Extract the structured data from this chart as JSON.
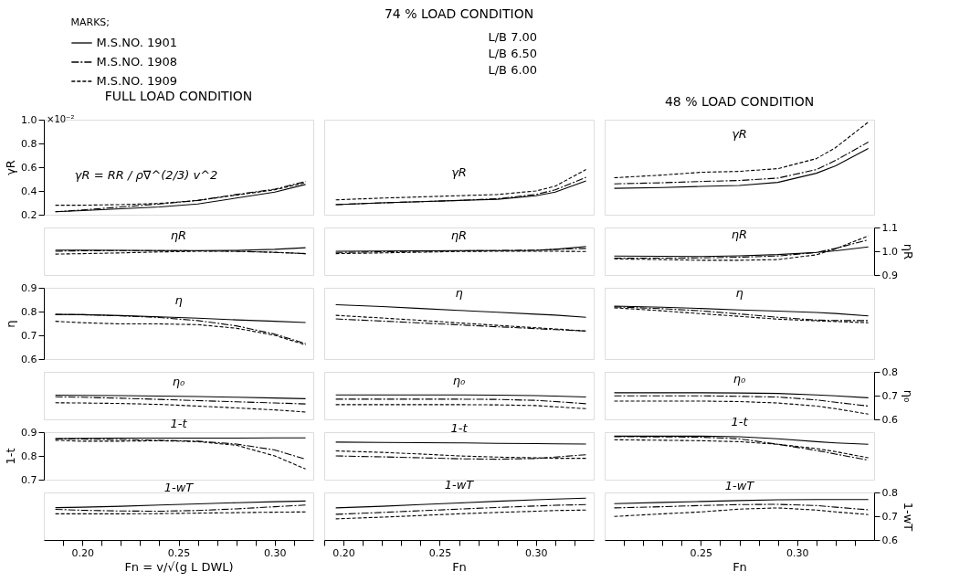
{
  "chart_data": [
    {
      "type": "line",
      "title": "FULL LOAD CONDITION",
      "ylabel": "γR",
      "annotations": [
        "γR = RR / ρ∇^(2/3) v^2",
        "×10⁻²"
      ],
      "xlim": [
        0.18,
        0.32
      ],
      "ylim": [
        0.2,
        1.0
      ],
      "yticks": [
        0.2,
        0.4,
        0.6,
        0.8,
        {
          "value": 1.0,
          "label": "1.0"
        }
      ],
      "tick_labels": "y",
      "x": [
        0.186,
        0.2,
        0.22,
        0.24,
        0.26,
        0.28,
        0.3,
        0.316
      ],
      "series": [
        {
          "color": "#000000",
          "line_style": "solid",
          "values": [
            0.225,
            0.235,
            0.25,
            0.265,
            0.29,
            0.34,
            0.39,
            0.455
          ]
        },
        {
          "color": "#000000",
          "line_style": "dashdot",
          "values": [
            0.225,
            0.24,
            0.265,
            0.29,
            0.32,
            0.37,
            0.415,
            0.48
          ]
        },
        {
          "color": "#000000",
          "line_style": "dashed",
          "values": [
            0.28,
            0.28,
            0.285,
            0.295,
            0.32,
            0.365,
            0.41,
            0.47
          ]
        }
      ]
    },
    {
      "type": "line",
      "title": "74 % LOAD CONDITION",
      "legend": "top",
      "legend_title": "MARKS;",
      "annotations": [
        "γR",
        "L/B 7.00",
        "L/B 6.50",
        "L/B 6.00"
      ],
      "xlim": [
        0.19,
        0.33
      ],
      "ylim": [
        0.2,
        1.0
      ],
      "tick_labels": false,
      "x": [
        0.196,
        0.22,
        0.24,
        0.26,
        0.28,
        0.3,
        0.31,
        0.326
      ],
      "series": [
        {
          "name": "M.S.NO. 1901",
          "color": "#000000",
          "line_style": "solid",
          "values": [
            0.285,
            0.3,
            0.31,
            0.32,
            0.33,
            0.36,
            0.39,
            0.485
          ]
        },
        {
          "name": "M.S.NO. 1908",
          "color": "#000000",
          "line_style": "dashdot",
          "values": [
            0.285,
            0.3,
            0.31,
            0.32,
            0.335,
            0.37,
            0.41,
            0.515
          ]
        },
        {
          "name": "M.S.NO. 1909",
          "color": "#000000",
          "line_style": "dashed",
          "values": [
            0.325,
            0.34,
            0.35,
            0.36,
            0.37,
            0.4,
            0.44,
            0.58
          ]
        }
      ]
    },
    {
      "type": "line",
      "title": "48 % LOAD CONDITION",
      "annotations": [
        "γR"
      ],
      "xlim": [
        0.2,
        0.34
      ],
      "ylim": [
        0.2,
        1.0
      ],
      "tick_labels": false,
      "x": [
        0.205,
        0.23,
        0.25,
        0.27,
        0.29,
        0.31,
        0.32,
        0.337
      ],
      "series": [
        {
          "color": "#000000",
          "line_style": "solid",
          "values": [
            0.422,
            0.429,
            0.438,
            0.446,
            0.472,
            0.549,
            0.611,
            0.757
          ]
        },
        {
          "color": "#000000",
          "line_style": "dashdot",
          "values": [
            0.46,
            0.469,
            0.48,
            0.488,
            0.508,
            0.58,
            0.657,
            0.811
          ]
        },
        {
          "color": "#000000",
          "line_style": "dashed",
          "values": [
            0.511,
            0.534,
            0.557,
            0.565,
            0.588,
            0.672,
            0.765,
            0.98
          ]
        }
      ]
    },
    {
      "type": "line",
      "annotations": [
        "ηR"
      ],
      "xlim": [
        0.18,
        0.32
      ],
      "ylim": [
        0.9,
        1.1
      ],
      "tick_labels": false,
      "x": [
        0.186,
        0.2,
        0.22,
        0.24,
        0.26,
        0.28,
        0.3,
        0.316
      ],
      "series": [
        {
          "color": "#000000",
          "line_style": "solid",
          "values": [
            1.005,
            1.005,
            1.004,
            1.003,
            1.003,
            1.004,
            1.008,
            1.015
          ]
        },
        {
          "color": "#000000",
          "line_style": "dashdot",
          "values": [
            1.0,
            1.002,
            1.003,
            1.003,
            1.002,
            1.0,
            0.995,
            0.99
          ]
        },
        {
          "color": "#000000",
          "line_style": "dashed",
          "values": [
            0.988,
            0.99,
            0.993,
            0.997,
            1.0,
            1.0,
            0.996,
            0.99
          ]
        }
      ]
    },
    {
      "type": "line",
      "annotations": [
        "ηR"
      ],
      "xlim": [
        0.19,
        0.33
      ],
      "ylim": [
        0.9,
        1.1
      ],
      "tick_labels": false,
      "x": [
        0.196,
        0.22,
        0.24,
        0.26,
        0.28,
        0.3,
        0.31,
        0.326
      ],
      "series": [
        {
          "color": "#000000",
          "line_style": "solid",
          "values": [
            1.0,
            1.001,
            1.002,
            1.003,
            1.003,
            1.004,
            1.008,
            1.02
          ]
        },
        {
          "color": "#000000",
          "line_style": "dashdot",
          "values": [
            0.995,
            0.998,
            1.0,
            1.002,
            1.003,
            1.005,
            1.008,
            1.012
          ]
        },
        {
          "color": "#000000",
          "line_style": "dashed",
          "values": [
            0.99,
            0.993,
            0.996,
            0.999,
            1.0,
            1.0,
            1.0,
            0.999
          ]
        }
      ]
    },
    {
      "type": "line",
      "annotations": [
        "ηR"
      ],
      "ylabel": "ηR",
      "xlim": [
        0.2,
        0.34
      ],
      "ylim": [
        0.9,
        1.1
      ],
      "yticks": [
        0.9,
        {
          "value": 1.0,
          "label": "1.0"
        },
        1.1
      ],
      "tick_labels": "y",
      "x": [
        0.205,
        0.23,
        0.25,
        0.27,
        0.29,
        0.31,
        0.32,
        0.337
      ],
      "series": [
        {
          "color": "#000000",
          "line_style": "solid",
          "values": [
            0.98,
            0.979,
            0.978,
            0.981,
            0.986,
            0.995,
            1.002,
            1.018
          ]
        },
        {
          "color": "#000000",
          "line_style": "dashdot",
          "values": [
            0.971,
            0.971,
            0.972,
            0.975,
            0.98,
            0.995,
            1.012,
            1.048
          ]
        },
        {
          "color": "#000000",
          "line_style": "dashed",
          "values": [
            0.968,
            0.965,
            0.962,
            0.962,
            0.965,
            0.985,
            1.01,
            1.065
          ]
        }
      ]
    },
    {
      "type": "line",
      "annotations": [
        "η"
      ],
      "ylabel": "η",
      "xlim": [
        0.18,
        0.32
      ],
      "ylim": [
        0.6,
        0.9
      ],
      "yticks": [
        0.6,
        0.7,
        0.8,
        0.9
      ],
      "tick_labels": "y",
      "x": [
        0.186,
        0.2,
        0.22,
        0.24,
        0.26,
        0.28,
        0.3,
        0.316
      ],
      "series": [
        {
          "color": "#000000",
          "line_style": "solid",
          "values": [
            0.788,
            0.787,
            0.783,
            0.778,
            0.772,
            0.765,
            0.759,
            0.754
          ]
        },
        {
          "color": "#000000",
          "line_style": "dashdot",
          "values": [
            0.788,
            0.787,
            0.782,
            0.775,
            0.762,
            0.74,
            0.705,
            0.665
          ]
        },
        {
          "color": "#000000",
          "line_style": "dashed",
          "values": [
            0.759,
            0.753,
            0.748,
            0.748,
            0.745,
            0.73,
            0.7,
            0.66
          ]
        }
      ]
    },
    {
      "type": "line",
      "annotations": [
        "η"
      ],
      "xlim": [
        0.19,
        0.33
      ],
      "ylim": [
        0.6,
        0.9
      ],
      "tick_labels": false,
      "x": [
        0.196,
        0.22,
        0.24,
        0.26,
        0.28,
        0.3,
        0.31,
        0.326
      ],
      "series": [
        {
          "color": "#000000",
          "line_style": "solid",
          "values": [
            0.829,
            0.821,
            0.813,
            0.805,
            0.797,
            0.789,
            0.785,
            0.776
          ]
        },
        {
          "color": "#000000",
          "line_style": "dashdot",
          "values": [
            0.769,
            0.76,
            0.752,
            0.744,
            0.736,
            0.728,
            0.724,
            0.718
          ]
        },
        {
          "color": "#000000",
          "line_style": "dashed",
          "values": [
            0.784,
            0.773,
            0.763,
            0.752,
            0.742,
            0.732,
            0.727,
            0.718
          ]
        }
      ]
    },
    {
      "type": "line",
      "annotations": [
        "η"
      ],
      "xlim": [
        0.2,
        0.34
      ],
      "ylim": [
        0.6,
        0.9
      ],
      "tick_labels": false,
      "x": [
        0.205,
        0.23,
        0.25,
        0.27,
        0.29,
        0.31,
        0.32,
        0.337
      ],
      "series": [
        {
          "color": "#000000",
          "line_style": "solid",
          "values": [
            0.823,
            0.818,
            0.813,
            0.807,
            0.802,
            0.796,
            0.792,
            0.782
          ]
        },
        {
          "color": "#000000",
          "line_style": "dashdot",
          "values": [
            0.82,
            0.812,
            0.803,
            0.79,
            0.776,
            0.764,
            0.762,
            0.762
          ]
        },
        {
          "color": "#000000",
          "line_style": "dashed",
          "values": [
            0.816,
            0.803,
            0.791,
            0.78,
            0.768,
            0.761,
            0.758,
            0.753
          ]
        }
      ]
    },
    {
      "type": "line",
      "annotations": [
        "η₀"
      ],
      "xlim": [
        0.18,
        0.32
      ],
      "ylim": [
        0.6,
        0.8
      ],
      "tick_labels": false,
      "x": [
        0.186,
        0.2,
        0.22,
        0.24,
        0.26,
        0.28,
        0.3,
        0.316
      ],
      "series": [
        {
          "color": "#000000",
          "line_style": "solid",
          "values": [
            0.702,
            0.701,
            0.7,
            0.698,
            0.696,
            0.693,
            0.69,
            0.687
          ]
        },
        {
          "color": "#000000",
          "line_style": "dashdot",
          "values": [
            0.695,
            0.693,
            0.689,
            0.684,
            0.679,
            0.674,
            0.669,
            0.665
          ]
        },
        {
          "color": "#000000",
          "line_style": "dashed",
          "values": [
            0.67,
            0.669,
            0.667,
            0.663,
            0.656,
            0.648,
            0.64,
            0.631
          ]
        }
      ]
    },
    {
      "type": "line",
      "annotations": [
        "η₀"
      ],
      "xlim": [
        0.19,
        0.33
      ],
      "ylim": [
        0.6,
        0.8
      ],
      "tick_labels": false,
      "x": [
        0.196,
        0.22,
        0.24,
        0.26,
        0.28,
        0.3,
        0.31,
        0.326
      ],
      "series": [
        {
          "color": "#000000",
          "line_style": "solid",
          "values": [
            0.703,
            0.703,
            0.703,
            0.703,
            0.702,
            0.7,
            0.698,
            0.694
          ]
        },
        {
          "color": "#000000",
          "line_style": "dashdot",
          "values": [
            0.685,
            0.685,
            0.685,
            0.685,
            0.684,
            0.68,
            0.675,
            0.666
          ]
        },
        {
          "color": "#000000",
          "line_style": "dashed",
          "values": [
            0.662,
            0.662,
            0.662,
            0.662,
            0.661,
            0.658,
            0.653,
            0.645
          ]
        }
      ]
    },
    {
      "type": "line",
      "annotations": [
        "η₀"
      ],
      "ylabel": "η₀",
      "xlim": [
        0.2,
        0.34
      ],
      "ylim": [
        0.6,
        0.8
      ],
      "yticks": [
        0.6,
        0.7,
        0.8
      ],
      "tick_labels": "y",
      "x": [
        0.205,
        0.23,
        0.25,
        0.27,
        0.29,
        0.31,
        0.32,
        0.337
      ],
      "series": [
        {
          "color": "#000000",
          "line_style": "solid",
          "values": [
            0.712,
            0.712,
            0.712,
            0.711,
            0.709,
            0.703,
            0.699,
            0.691
          ]
        },
        {
          "color": "#000000",
          "line_style": "dashdot",
          "values": [
            0.699,
            0.699,
            0.699,
            0.697,
            0.694,
            0.682,
            0.672,
            0.656
          ]
        },
        {
          "color": "#000000",
          "line_style": "dashed",
          "values": [
            0.677,
            0.677,
            0.677,
            0.675,
            0.669,
            0.656,
            0.645,
            0.622
          ]
        }
      ]
    },
    {
      "type": "line",
      "annotations": [
        "1-t"
      ],
      "ylabel": "1-t",
      "xlim": [
        0.18,
        0.32
      ],
      "ylim": [
        0.7,
        0.9
      ],
      "yticks": [
        0.7,
        0.8,
        0.9
      ],
      "tick_labels": "y",
      "x": [
        0.186,
        0.2,
        0.22,
        0.24,
        0.26,
        0.28,
        0.3,
        0.316
      ],
      "series": [
        {
          "color": "#000000",
          "line_style": "solid",
          "values": [
            0.873,
            0.874,
            0.875,
            0.875,
            0.875,
            0.875,
            0.876,
            0.876
          ]
        },
        {
          "color": "#000000",
          "line_style": "dashdot",
          "values": [
            0.872,
            0.871,
            0.869,
            0.866,
            0.862,
            0.85,
            0.825,
            0.786
          ]
        },
        {
          "color": "#000000",
          "line_style": "dashed",
          "values": [
            0.866,
            0.862,
            0.862,
            0.864,
            0.86,
            0.845,
            0.8,
            0.745
          ]
        }
      ]
    },
    {
      "type": "line",
      "annotations": [
        "1-t"
      ],
      "xlim": [
        0.19,
        0.33
      ],
      "ylim": [
        0.7,
        0.9
      ],
      "tick_labels": false,
      "x": [
        0.196,
        0.22,
        0.24,
        0.26,
        0.28,
        0.3,
        0.31,
        0.326
      ],
      "series": [
        {
          "color": "#000000",
          "line_style": "solid",
          "values": [
            0.858,
            0.857,
            0.856,
            0.855,
            0.853,
            0.852,
            0.851,
            0.85
          ]
        },
        {
          "color": "#000000",
          "line_style": "dashdot",
          "values": [
            0.8,
            0.796,
            0.792,
            0.788,
            0.786,
            0.789,
            0.795,
            0.805
          ]
        },
        {
          "color": "#000000",
          "line_style": "dashed",
          "values": [
            0.821,
            0.815,
            0.808,
            0.8,
            0.795,
            0.792,
            0.79,
            0.79
          ]
        }
      ]
    },
    {
      "type": "line",
      "annotations": [
        "1-t"
      ],
      "xlim": [
        0.2,
        0.34
      ],
      "ylim": [
        0.7,
        0.9
      ],
      "tick_labels": false,
      "x": [
        0.205,
        0.23,
        0.25,
        0.27,
        0.29,
        0.31,
        0.32,
        0.337
      ],
      "series": [
        {
          "color": "#000000",
          "line_style": "solid",
          "values": [
            0.883,
            0.883,
            0.883,
            0.881,
            0.872,
            0.86,
            0.855,
            0.849
          ]
        },
        {
          "color": "#000000",
          "line_style": "dashdot",
          "values": [
            0.881,
            0.88,
            0.879,
            0.872,
            0.849,
            0.823,
            0.808,
            0.782
          ]
        },
        {
          "color": "#000000",
          "line_style": "dashed",
          "values": [
            0.868,
            0.866,
            0.864,
            0.86,
            0.849,
            0.831,
            0.818,
            0.792
          ]
        }
      ]
    },
    {
      "type": "line",
      "annotations": [
        "1-wT"
      ],
      "xlabel": "Fn = v/√(g L DWL)",
      "xlim": [
        0.18,
        0.32
      ],
      "ylim": [
        0.6,
        0.8
      ],
      "tick_labels": "x",
      "x": [
        0.186,
        0.2,
        0.22,
        0.24,
        0.26,
        0.28,
        0.3,
        0.316
      ],
      "xticks": [
        {
          "value": 0.19,
          "label": null
        },
        {
          "value": 0.2,
          "label": "0.20"
        },
        {
          "value": 0.21,
          "label": null
        },
        {
          "value": 0.22,
          "label": null
        },
        {
          "value": 0.23,
          "label": null
        },
        {
          "value": 0.24,
          "label": null
        },
        {
          "value": 0.25,
          "label": "0.25"
        },
        {
          "value": 0.26,
          "label": null
        },
        {
          "value": 0.27,
          "label": null
        },
        {
          "value": 0.28,
          "label": null
        },
        {
          "value": 0.29,
          "label": null
        },
        {
          "value": 0.3,
          "label": "0.30"
        },
        {
          "value": 0.31,
          "label": null
        }
      ],
      "series": [
        {
          "color": "#000000",
          "line_style": "solid",
          "values": [
            0.736,
            0.738,
            0.742,
            0.747,
            0.752,
            0.757,
            0.761,
            0.764
          ]
        },
        {
          "color": "#000000",
          "line_style": "dashdot",
          "values": [
            0.729,
            0.725,
            0.722,
            0.721,
            0.724,
            0.731,
            0.74,
            0.747
          ]
        },
        {
          "color": "#000000",
          "line_style": "dashed",
          "values": [
            0.71,
            0.71,
            0.71,
            0.711,
            0.713,
            0.715,
            0.717,
            0.718
          ]
        }
      ]
    },
    {
      "type": "line",
      "annotations": [
        "1-wT"
      ],
      "xlabel": "Fn",
      "xlim": [
        0.19,
        0.33
      ],
      "ylim": [
        0.6,
        0.8
      ],
      "tick_labels": "x",
      "x": [
        0.196,
        0.22,
        0.24,
        0.26,
        0.28,
        0.3,
        0.31,
        0.326
      ],
      "xticks": [
        {
          "value": 0.19,
          "label": null
        },
        {
          "value": 0.2,
          "label": "0.20"
        },
        {
          "value": 0.21,
          "label": null
        },
        {
          "value": 0.22,
          "label": null
        },
        {
          "value": 0.23,
          "label": null
        },
        {
          "value": 0.24,
          "label": null
        },
        {
          "value": 0.25,
          "label": "0.25"
        },
        {
          "value": 0.26,
          "label": null
        },
        {
          "value": 0.27,
          "label": null
        },
        {
          "value": 0.28,
          "label": null
        },
        {
          "value": 0.29,
          "label": null
        },
        {
          "value": 0.3,
          "label": "0.30"
        },
        {
          "value": 0.31,
          "label": null
        },
        {
          "value": 0.32,
          "label": null
        }
      ],
      "series": [
        {
          "color": "#000000",
          "line_style": "solid",
          "values": [
            0.735,
            0.742,
            0.749,
            0.756,
            0.763,
            0.769,
            0.772,
            0.776
          ]
        },
        {
          "color": "#000000",
          "line_style": "dashdot",
          "values": [
            0.708,
            0.716,
            0.723,
            0.73,
            0.737,
            0.743,
            0.746,
            0.749
          ]
        },
        {
          "color": "#000000",
          "line_style": "dashed",
          "values": [
            0.689,
            0.696,
            0.703,
            0.71,
            0.716,
            0.721,
            0.724,
            0.726
          ]
        }
      ]
    },
    {
      "type": "line",
      "annotations": [
        "1-wT"
      ],
      "xlabel": "Fn",
      "ylabel": "1-wT",
      "xlim": [
        0.2,
        0.34
      ],
      "ylim": [
        0.6,
        0.8
      ],
      "yticks": [
        0.6,
        0.7,
        0.8
      ],
      "x": [
        0.205,
        0.23,
        0.25,
        0.27,
        0.29,
        0.31,
        0.32,
        0.337
      ],
      "xticks": [
        {
          "value": 0.21,
          "label": null
        },
        {
          "value": 0.22,
          "label": null
        },
        {
          "value": 0.23,
          "label": null
        },
        {
          "value": 0.24,
          "label": null
        },
        {
          "value": 0.25,
          "label": "0.25"
        },
        {
          "value": 0.26,
          "label": null
        },
        {
          "value": 0.27,
          "label": null
        },
        {
          "value": 0.28,
          "label": null
        },
        {
          "value": 0.29,
          "label": null
        },
        {
          "value": 0.3,
          "label": "0.30"
        },
        {
          "value": 0.31,
          "label": null
        },
        {
          "value": 0.32,
          "label": null
        },
        {
          "value": 0.33,
          "label": null
        }
      ],
      "series": [
        {
          "color": "#000000",
          "line_style": "solid",
          "values": [
            0.753,
            0.758,
            0.762,
            0.766,
            0.769,
            0.77,
            0.77,
            0.77
          ]
        },
        {
          "color": "#000000",
          "line_style": "dashdot",
          "values": [
            0.735,
            0.74,
            0.745,
            0.749,
            0.75,
            0.745,
            0.738,
            0.727
          ]
        },
        {
          "color": "#000000",
          "line_style": "dashed",
          "values": [
            0.699,
            0.71,
            0.718,
            0.73,
            0.735,
            0.726,
            0.718,
            0.707
          ]
        }
      ]
    }
  ]
}
